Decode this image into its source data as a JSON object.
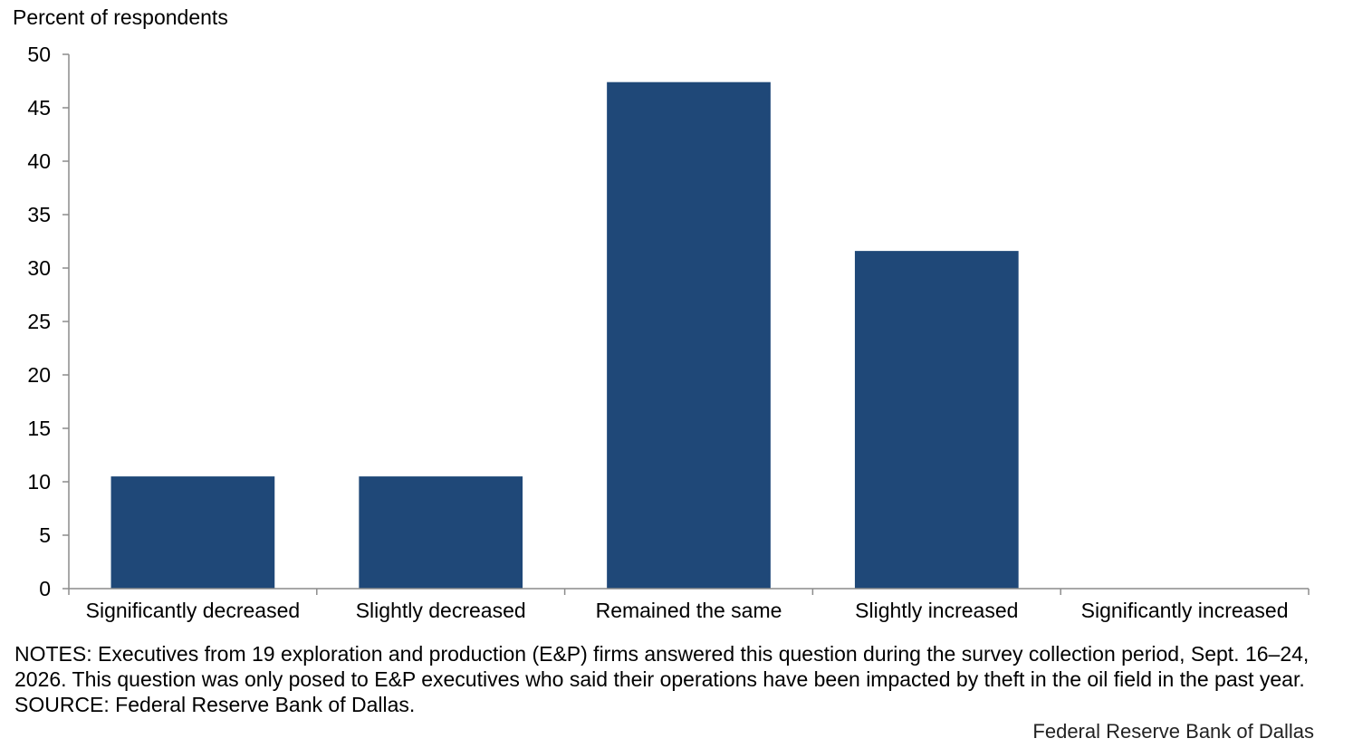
{
  "chart_data": {
    "type": "bar",
    "ylabel": "Percent of respondents",
    "categories": [
      "Significantly decreased",
      "Slightly decreased",
      "Remained the same",
      "Slightly increased",
      "Significantly increased"
    ],
    "values": [
      10.5,
      10.5,
      47.4,
      31.6,
      0
    ],
    "ylim": [
      0,
      50
    ],
    "yticks": [
      "0",
      "5",
      "10",
      "15",
      "20",
      "25",
      "30",
      "35",
      "40",
      "45",
      "50"
    ],
    "grid": false,
    "legend": "none",
    "bar_color": "#1f4878"
  },
  "notes": {
    "text": "NOTES: Executives from 19 exploration and production (E&P) firms answered this question during the survey collection period, Sept. 16–24, 2026. This question was only posed to E&P executives who said their operations have been impacted by theft in the oil field in the past year.",
    "source": "SOURCE: Federal Reserve Bank of Dallas."
  },
  "credit": "Federal Reserve Bank of Dallas"
}
